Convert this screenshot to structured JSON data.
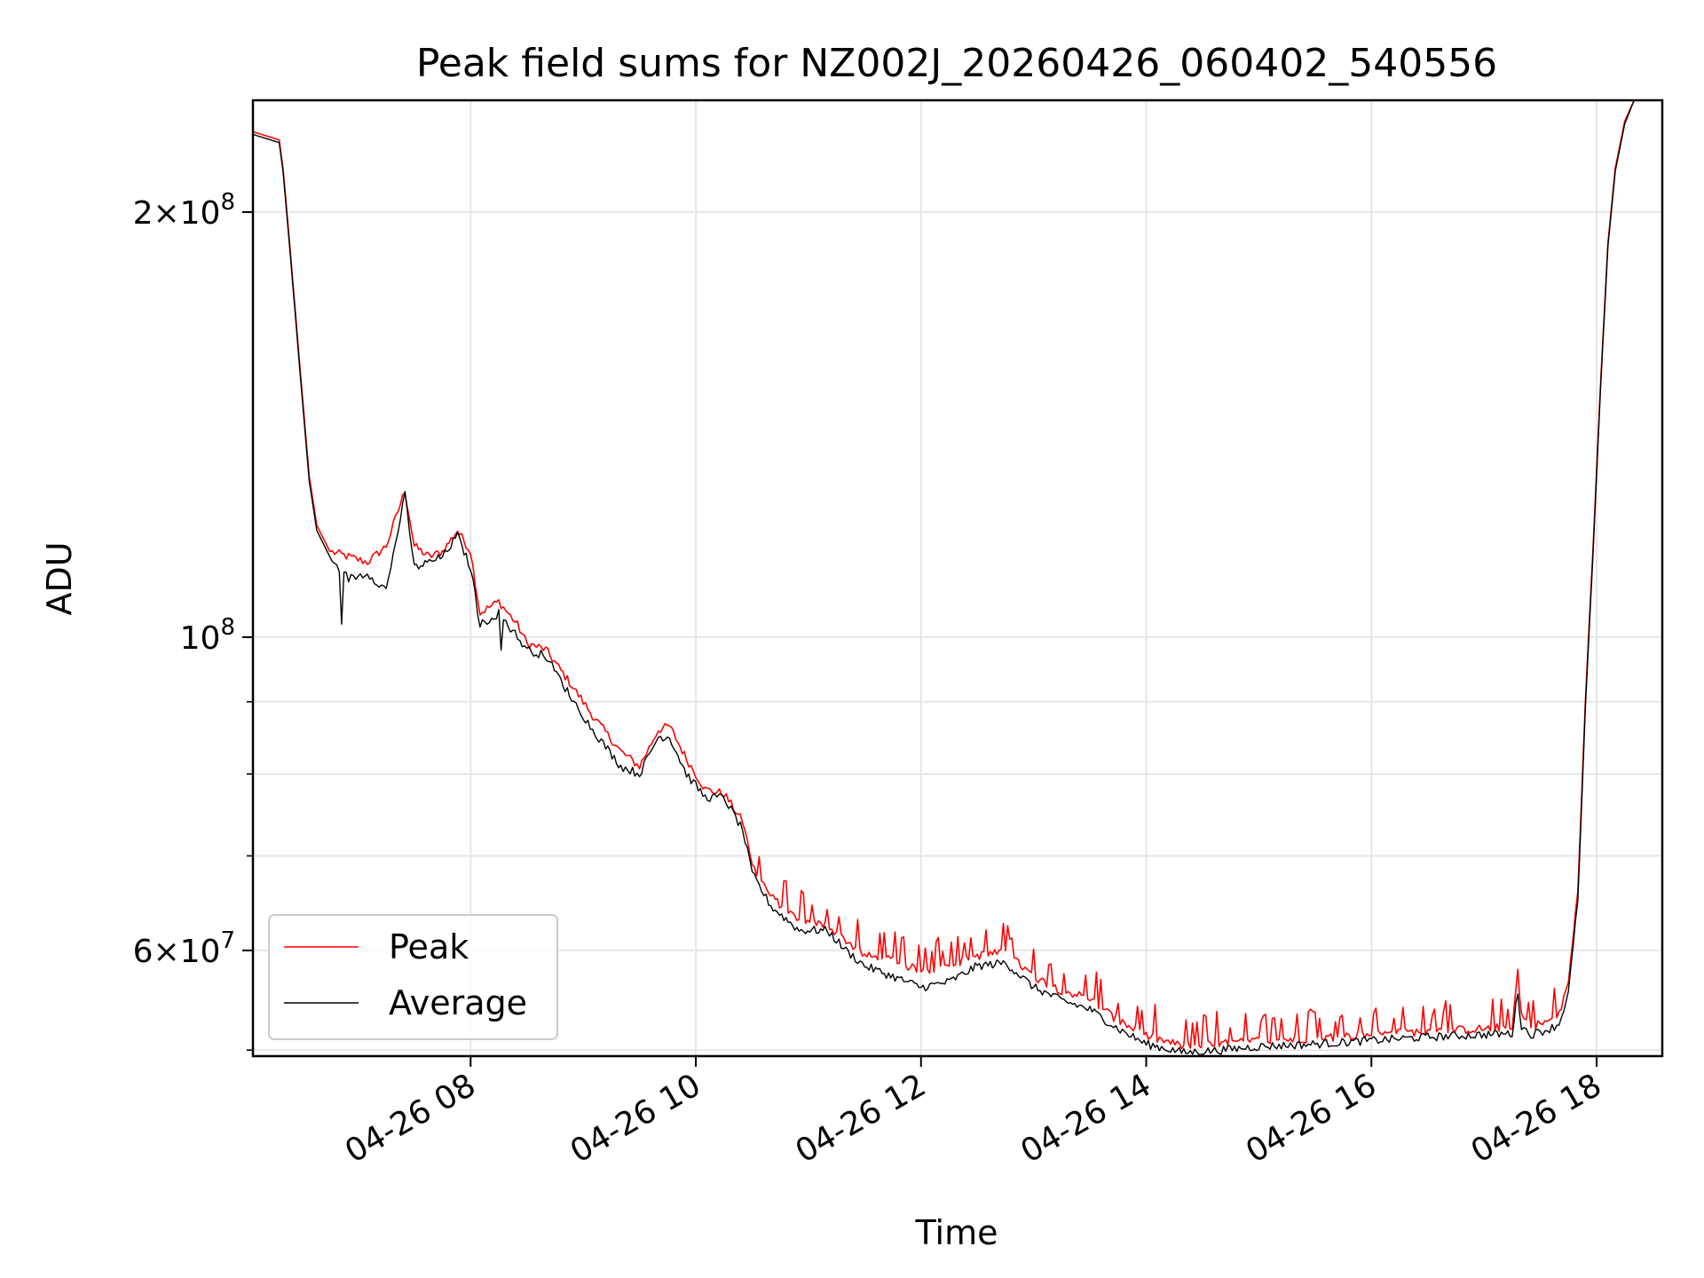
{
  "chart_data": {
    "type": "line",
    "title": "Peak field sums for NZ002J_20260426_060402_540556",
    "xlabel": "Time",
    "ylabel": "ADU",
    "y_scale": "log",
    "ylim": [
      50500000,
      240000000
    ],
    "xlim": [
      "2026-04-26 06:04",
      "2026-04-26 18:35"
    ],
    "grid": true,
    "legend_position": "lower-left",
    "x_ticks": [
      {
        "value": "2026-04-26 08:00",
        "label": "04-26 08"
      },
      {
        "value": "2026-04-26 10:00",
        "label": "04-26 10"
      },
      {
        "value": "2026-04-26 12:00",
        "label": "04-26 12"
      },
      {
        "value": "2026-04-26 14:00",
        "label": "04-26 14"
      },
      {
        "value": "2026-04-26 16:00",
        "label": "04-26 16"
      },
      {
        "value": "2026-04-26 18:00",
        "label": "04-26 18"
      }
    ],
    "y_major_ticks": [
      {
        "value": 200000000,
        "mantissa": "2",
        "exponent": "8"
      },
      {
        "value": 100000000,
        "mantissa": "",
        "exponent": "8"
      },
      {
        "value": 60000000,
        "mantissa": "6",
        "exponent": "7"
      }
    ],
    "y_minor_ticks": [
      70000000,
      80000000,
      90000000,
      300000000
    ],
    "series": [
      {
        "name": "Peak",
        "color": "#ff0000",
        "x": [
          "2026-04-26 06:04",
          "2026-04-26 06:18",
          "2026-04-26 06:20",
          "2026-04-26 06:24",
          "2026-04-26 06:30",
          "2026-04-26 06:34",
          "2026-04-26 06:38",
          "2026-04-26 06:45",
          "2026-04-26 06:55",
          "2026-04-26 07:05",
          "2026-04-26 07:15",
          "2026-04-26 07:25",
          "2026-04-26 07:30",
          "2026-04-26 07:38",
          "2026-04-26 07:45",
          "2026-04-26 07:53",
          "2026-04-26 08:00",
          "2026-04-26 08:05",
          "2026-04-26 08:15",
          "2026-04-26 08:25",
          "2026-04-26 08:30",
          "2026-04-26 08:40",
          "2026-04-26 08:55",
          "2026-04-26 09:05",
          "2026-04-26 09:20",
          "2026-04-26 09:30",
          "2026-04-26 09:40",
          "2026-04-26 09:46",
          "2026-04-26 09:55",
          "2026-04-26 10:05",
          "2026-04-26 10:15",
          "2026-04-26 10:25",
          "2026-04-26 10:30",
          "2026-04-26 10:40",
          "2026-04-26 10:55",
          "2026-04-26 11:10",
          "2026-04-26 11:20",
          "2026-04-26 11:30",
          "2026-04-26 11:45",
          "2026-04-26 12:00",
          "2026-04-26 12:15",
          "2026-04-26 12:30",
          "2026-04-26 12:45",
          "2026-04-26 13:00",
          "2026-04-26 13:15",
          "2026-04-26 13:30",
          "2026-04-26 13:45",
          "2026-04-26 14:00",
          "2026-04-26 14:20",
          "2026-04-26 14:40",
          "2026-04-26 15:00",
          "2026-04-26 15:30",
          "2026-04-26 16:00",
          "2026-04-26 16:30",
          "2026-04-26 17:00",
          "2026-04-26 17:15",
          "2026-04-26 17:18",
          "2026-04-26 17:20",
          "2026-04-26 17:25",
          "2026-04-26 17:35",
          "2026-04-26 17:40",
          "2026-04-26 17:45",
          "2026-04-26 17:50",
          "2026-04-26 17:54",
          "2026-04-26 17:58",
          "2026-04-26 18:02",
          "2026-04-26 18:06",
          "2026-04-26 18:10",
          "2026-04-26 18:15",
          "2026-04-26 18:20",
          "2026-04-26 18:24"
        ],
        "values": [
          228000000,
          225000000,
          215000000,
          187000000,
          150000000,
          130000000,
          120000000,
          115000000,
          114000000,
          113000000,
          116000000,
          127000000,
          116000000,
          114000000,
          115000000,
          119000000,
          115000000,
          104000000,
          106000000,
          102000000,
          99000000,
          98000000,
          92000000,
          88000000,
          83000000,
          81000000,
          86000000,
          86500000,
          82000000,
          78000000,
          77500000,
          74000000,
          69000000,
          65500000,
          63000000,
          62500000,
          61000000,
          59500000,
          59000000,
          58000000,
          58500000,
          59500000,
          59800000,
          57500000,
          56200000,
          55500000,
          53500000,
          52200000,
          51300000,
          51500000,
          51800000,
          52000000,
          52300000,
          52600000,
          52800000,
          53000000,
          58000000,
          54000000,
          53000000,
          53500000,
          54000000,
          57000000,
          66000000,
          90000000,
          115000000,
          150000000,
          190000000,
          215000000,
          232000000,
          240000000,
          240000000
        ]
      },
      {
        "name": "Average",
        "color": "#000000",
        "x": [
          "2026-04-26 06:04",
          "2026-04-26 06:18",
          "2026-04-26 06:20",
          "2026-04-26 06:24",
          "2026-04-26 06:30",
          "2026-04-26 06:34",
          "2026-04-26 06:38",
          "2026-04-26 06:45",
          "2026-04-26 06:55",
          "2026-04-26 07:05",
          "2026-04-26 07:15",
          "2026-04-26 07:25",
          "2026-04-26 07:30",
          "2026-04-26 07:38",
          "2026-04-26 07:45",
          "2026-04-26 07:53",
          "2026-04-26 08:00",
          "2026-04-26 08:05",
          "2026-04-26 08:15",
          "2026-04-26 08:25",
          "2026-04-26 08:30",
          "2026-04-26 08:40",
          "2026-04-26 08:55",
          "2026-04-26 09:05",
          "2026-04-26 09:20",
          "2026-04-26 09:30",
          "2026-04-26 09:40",
          "2026-04-26 09:46",
          "2026-04-26 09:55",
          "2026-04-26 10:05",
          "2026-04-26 10:15",
          "2026-04-26 10:25",
          "2026-04-26 10:30",
          "2026-04-26 10:40",
          "2026-04-26 10:55",
          "2026-04-26 11:10",
          "2026-04-26 11:20",
          "2026-04-26 11:30",
          "2026-04-26 11:45",
          "2026-04-26 12:00",
          "2026-04-26 12:15",
          "2026-04-26 12:30",
          "2026-04-26 12:45",
          "2026-04-26 13:00",
          "2026-04-26 13:15",
          "2026-04-26 13:30",
          "2026-04-26 13:45",
          "2026-04-26 14:00",
          "2026-04-26 14:20",
          "2026-04-26 14:40",
          "2026-04-26 15:00",
          "2026-04-26 15:30",
          "2026-04-26 16:00",
          "2026-04-26 16:30",
          "2026-04-26 17:00",
          "2026-04-26 17:15",
          "2026-04-26 17:18",
          "2026-04-26 17:20",
          "2026-04-26 17:25",
          "2026-04-26 17:35",
          "2026-04-26 17:40",
          "2026-04-26 17:45",
          "2026-04-26 17:50",
          "2026-04-26 17:54",
          "2026-04-26 17:58",
          "2026-04-26 18:02",
          "2026-04-26 18:06",
          "2026-04-26 18:10",
          "2026-04-26 18:15",
          "2026-04-26 18:20",
          "2026-04-26 18:24"
        ],
        "values": [
          227000000,
          224000000,
          214000000,
          186000000,
          149000000,
          129000000,
          119000000,
          114000000,
          110000000,
          111000000,
          108000000,
          126000000,
          112000000,
          113000000,
          114000000,
          118000000,
          112000000,
          102000000,
          104000000,
          100000000,
          98000000,
          97000000,
          90000000,
          86000000,
          81000000,
          80000000,
          85000000,
          85000000,
          80000000,
          77000000,
          77000000,
          73000000,
          68000000,
          64500000,
          62000000,
          62000000,
          60000000,
          58500000,
          57500000,
          56500000,
          57000000,
          58500000,
          58800000,
          56500000,
          55300000,
          54500000,
          52800000,
          51500000,
          50800000,
          51000000,
          51300000,
          51500000,
          51800000,
          52100000,
          52300000,
          52400000,
          56000000,
          53000000,
          52300000,
          52800000,
          53200000,
          56000000,
          65000000,
          89000000,
          114000000,
          149000000,
          189000000,
          214000000,
          231000000,
          240000000,
          240000000
        ]
      }
    ]
  }
}
